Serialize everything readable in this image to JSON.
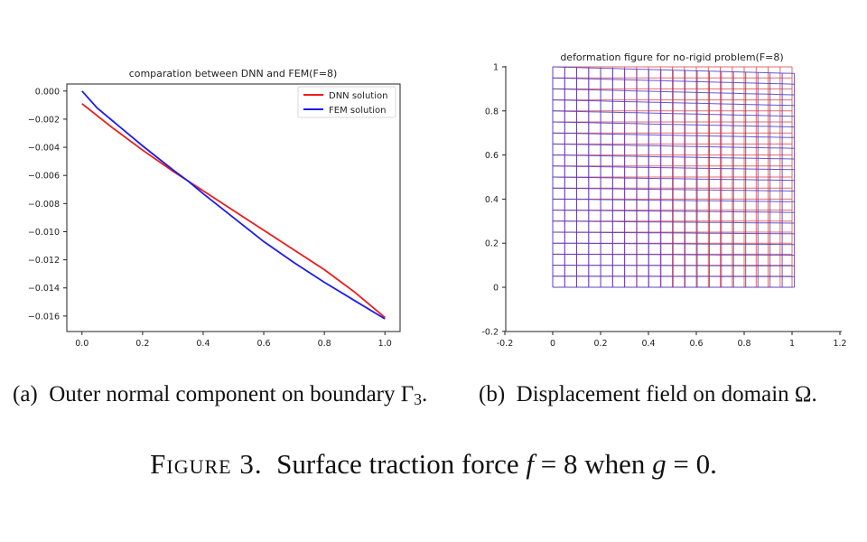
{
  "colors": {
    "dnn": "#ee1c1c",
    "fem": "#1c1cee",
    "grid_red": "#e05050",
    "grid_blue": "#4a3cc8"
  },
  "chart_data": [
    {
      "type": "line",
      "title": "comparation between DNN and FEM(F=8)",
      "xlabel": "",
      "ylabel": "",
      "xlim": [
        -0.05,
        1.05
      ],
      "ylim": [
        -0.0171,
        0.0005
      ],
      "xticks": [
        0.0,
        0.2,
        0.4,
        0.6,
        0.8,
        1.0
      ],
      "xtick_labels": [
        "0.0",
        "0.2",
        "0.4",
        "0.6",
        "0.8",
        "1.0"
      ],
      "yticks": [
        0.0,
        -0.002,
        -0.004,
        -0.006,
        -0.008,
        -0.01,
        -0.012,
        -0.014,
        -0.016
      ],
      "ytick_labels": [
        "0.000",
        "−0.002",
        "−0.004",
        "−0.006",
        "−0.008",
        "−0.010",
        "−0.012",
        "−0.014",
        "−0.016"
      ],
      "legend_position": "top-right",
      "series": [
        {
          "name": "DNN solution",
          "color": "#ee1c1c",
          "x": [
            0.0,
            0.1,
            0.2,
            0.3,
            0.35,
            0.4,
            0.5,
            0.6,
            0.7,
            0.8,
            0.9,
            1.0
          ],
          "values": [
            -0.0009,
            -0.0026,
            -0.0042,
            -0.0057,
            -0.0064,
            -0.0071,
            -0.0085,
            -0.0099,
            -0.0113,
            -0.0127,
            -0.0143,
            -0.0161
          ]
        },
        {
          "name": "FEM solution",
          "color": "#1c1cee",
          "x": [
            0.0,
            0.05,
            0.1,
            0.2,
            0.3,
            0.35,
            0.4,
            0.5,
            0.6,
            0.7,
            0.8,
            0.9,
            1.0
          ],
          "values": [
            0.0,
            -0.0012,
            -0.0021,
            -0.0039,
            -0.0056,
            -0.0064,
            -0.0073,
            -0.009,
            -0.0107,
            -0.0122,
            -0.0136,
            -0.0149,
            -0.0162
          ]
        }
      ]
    },
    {
      "type": "grid",
      "title": "deformation figure for no-rigid problem(F=8)",
      "xlim": [
        -0.2,
        1.2
      ],
      "ylim": [
        -0.2,
        1.0
      ],
      "xticks": [
        -0.2,
        0,
        0.2,
        0.4,
        0.6,
        0.8,
        1,
        1.2
      ],
      "xtick_labels": [
        "-0.2",
        "0",
        "0.2",
        "0.4",
        "0.6",
        "0.8",
        "1",
        "1.2"
      ],
      "yticks": [
        -0.2,
        0,
        0.2,
        0.4,
        0.6,
        0.8,
        1
      ],
      "ytick_labels": [
        "-0.2",
        "0",
        "0.2",
        "0.4",
        "0.6",
        "0.8",
        "1"
      ],
      "grid_divisions": 20,
      "series": [
        {
          "color": "#e05050",
          "max_x_displacement": 0.0,
          "max_y_displacement": 0.0
        },
        {
          "color": "#4a3cc8",
          "max_x_displacement": 0.01,
          "max_y_displacement": -0.03
        }
      ]
    }
  ],
  "captions": {
    "a_label": "(a)",
    "a_text": "Outer normal component on boundary",
    "a_gamma": "Γ",
    "a_sub": "3",
    "a_end": ".",
    "b_label": "(b)",
    "b_text": "Displacement field on domain Ω.",
    "figure_label": "Figure 3.",
    "figure_text": "Surface traction force",
    "f_var": "f",
    "f_eq": "= 8 when",
    "g_var": "g",
    "g_eq": "= 0."
  }
}
